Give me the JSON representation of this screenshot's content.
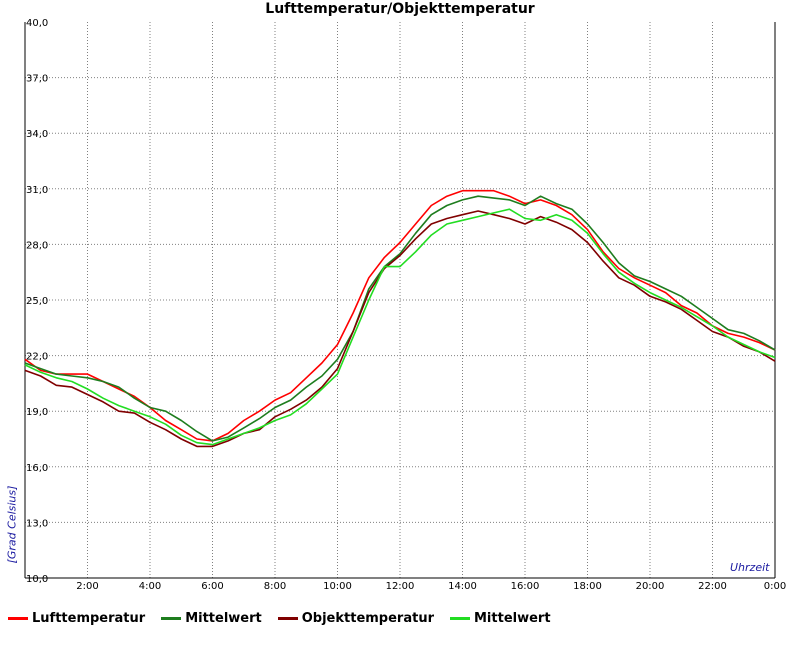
{
  "chart_data": {
    "type": "line",
    "title": "Lufttemperatur/Objekttemperatur",
    "xlabel": "Uhrzeit",
    "ylabel": "[Grad Celsius]",
    "ylim": [
      10,
      40
    ],
    "xlim": [
      0,
      24
    ],
    "grid": true,
    "legend_position": "bottom",
    "y_ticks": [
      {
        "value": 10,
        "label": "10,0"
      },
      {
        "value": 13,
        "label": "13,0"
      },
      {
        "value": 16,
        "label": "16,0"
      },
      {
        "value": 19,
        "label": "19,0"
      },
      {
        "value": 22,
        "label": "22,0"
      },
      {
        "value": 25,
        "label": "25,0"
      },
      {
        "value": 28,
        "label": "28,0"
      },
      {
        "value": 31,
        "label": "31,0"
      },
      {
        "value": 34,
        "label": "34,0"
      },
      {
        "value": 37,
        "label": "37,0"
      },
      {
        "value": 40,
        "label": "40,0"
      }
    ],
    "x_ticks": [
      {
        "value": 2,
        "label": "2:00"
      },
      {
        "value": 4,
        "label": "4:00"
      },
      {
        "value": 6,
        "label": "6:00"
      },
      {
        "value": 8,
        "label": "8:00"
      },
      {
        "value": 10,
        "label": "10:00"
      },
      {
        "value": 12,
        "label": "12:00"
      },
      {
        "value": 14,
        "label": "14:00"
      },
      {
        "value": 16,
        "label": "16:00"
      },
      {
        "value": 18,
        "label": "18:00"
      },
      {
        "value": 20,
        "label": "20:00"
      },
      {
        "value": 22,
        "label": "22:00"
      },
      {
        "value": 24,
        "label": "0:00"
      }
    ],
    "series": [
      {
        "name": "Lufttemperatur",
        "color": "#ff0000",
        "x": [
          0,
          0.5,
          1,
          1.5,
          2,
          2.5,
          3,
          3.5,
          4,
          4.5,
          5,
          5.5,
          6,
          6.5,
          7,
          7.5,
          8,
          8.5,
          9,
          9.5,
          10,
          10.5,
          11,
          11.5,
          12,
          12.5,
          13,
          13.5,
          14,
          14.5,
          15,
          15.5,
          16,
          16.5,
          17,
          17.5,
          18,
          18.5,
          19,
          19.5,
          20,
          20.5,
          21,
          21.5,
          22,
          22.5,
          23,
          23.5,
          24
        ],
        "y": [
          21.8,
          21.2,
          21.0,
          21.0,
          21.0,
          20.6,
          20.2,
          19.8,
          19.2,
          18.5,
          18.0,
          17.5,
          17.4,
          17.8,
          18.5,
          19.0,
          19.6,
          20.0,
          20.8,
          21.6,
          22.6,
          24.3,
          26.2,
          27.3,
          28.1,
          29.1,
          30.1,
          30.6,
          30.9,
          30.9,
          30.9,
          30.6,
          30.2,
          30.4,
          30.1,
          29.6,
          28.8,
          27.6,
          26.7,
          26.2,
          25.8,
          25.4,
          24.7,
          24.3,
          23.6,
          23.2,
          23.0,
          22.7,
          22.3
        ]
      },
      {
        "name": "Mittelwert",
        "color": "#1e7d1e",
        "x": [
          0,
          0.5,
          1,
          1.5,
          2,
          2.5,
          3,
          3.5,
          4,
          4.5,
          5,
          5.5,
          6,
          6.5,
          7,
          7.5,
          8,
          8.5,
          9,
          9.5,
          10,
          10.5,
          11,
          11.5,
          12,
          12.5,
          13,
          13.5,
          14,
          14.5,
          15,
          15.5,
          16,
          16.5,
          17,
          17.5,
          18,
          18.5,
          19,
          19.5,
          20,
          20.5,
          21,
          21.5,
          22,
          22.5,
          23,
          23.5,
          24
        ],
        "y": [
          21.6,
          21.3,
          21.0,
          20.9,
          20.8,
          20.6,
          20.3,
          19.7,
          19.2,
          19.0,
          18.5,
          17.9,
          17.4,
          17.6,
          18.1,
          18.6,
          19.2,
          19.6,
          20.3,
          20.9,
          21.8,
          23.3,
          25.6,
          26.8,
          27.5,
          28.6,
          29.6,
          30.1,
          30.4,
          30.6,
          30.5,
          30.4,
          30.1,
          30.6,
          30.2,
          29.9,
          29.1,
          28.1,
          27.0,
          26.3,
          26.0,
          25.6,
          25.2,
          24.6,
          24.0,
          23.4,
          23.2,
          22.8,
          22.3
        ]
      },
      {
        "name": "Objekttemperatur",
        "color": "#800000",
        "x": [
          0,
          0.5,
          1,
          1.5,
          2,
          2.5,
          3,
          3.5,
          4,
          4.5,
          5,
          5.5,
          6,
          6.5,
          7,
          7.5,
          8,
          8.5,
          9,
          9.5,
          10,
          10.5,
          11,
          11.5,
          12,
          12.5,
          13,
          13.5,
          14,
          14.5,
          15,
          15.5,
          16,
          16.5,
          17,
          17.5,
          18,
          18.5,
          19,
          19.5,
          20,
          20.5,
          21,
          21.5,
          22,
          22.5,
          23,
          23.5,
          24
        ],
        "y": [
          21.2,
          20.9,
          20.4,
          20.3,
          19.9,
          19.5,
          19.0,
          18.9,
          18.4,
          18.0,
          17.5,
          17.1,
          17.1,
          17.4,
          17.8,
          18.0,
          18.7,
          19.1,
          19.6,
          20.3,
          21.3,
          23.3,
          25.4,
          26.7,
          27.4,
          28.3,
          29.1,
          29.4,
          29.6,
          29.8,
          29.6,
          29.4,
          29.1,
          29.5,
          29.2,
          28.8,
          28.1,
          27.1,
          26.2,
          25.8,
          25.2,
          24.9,
          24.5,
          23.9,
          23.3,
          23.0,
          22.5,
          22.2,
          21.7
        ]
      },
      {
        "name": "Mittelwert",
        "color": "#22dd22",
        "x": [
          0,
          0.5,
          1,
          1.5,
          2,
          2.5,
          3,
          3.5,
          4,
          4.5,
          5,
          5.5,
          6,
          6.5,
          7,
          7.5,
          8,
          8.5,
          9,
          9.5,
          10,
          10.5,
          11,
          11.5,
          12,
          12.5,
          13,
          13.5,
          14,
          14.5,
          15,
          15.5,
          16,
          16.5,
          17,
          17.5,
          18,
          18.5,
          19,
          19.5,
          20,
          20.5,
          21,
          21.5,
          22,
          22.5,
          23,
          23.5,
          24
        ],
        "y": [
          21.5,
          21.1,
          20.8,
          20.6,
          20.2,
          19.7,
          19.3,
          19.0,
          18.7,
          18.3,
          17.7,
          17.3,
          17.2,
          17.5,
          17.8,
          18.1,
          18.5,
          18.8,
          19.4,
          20.2,
          21.0,
          23.0,
          25.0,
          26.8,
          26.8,
          27.6,
          28.5,
          29.1,
          29.3,
          29.5,
          29.7,
          29.9,
          29.4,
          29.3,
          29.6,
          29.3,
          28.6,
          27.5,
          26.5,
          25.9,
          25.4,
          25.0,
          24.6,
          24.1,
          23.6,
          23.0,
          22.6,
          22.2,
          21.9
        ]
      }
    ]
  }
}
